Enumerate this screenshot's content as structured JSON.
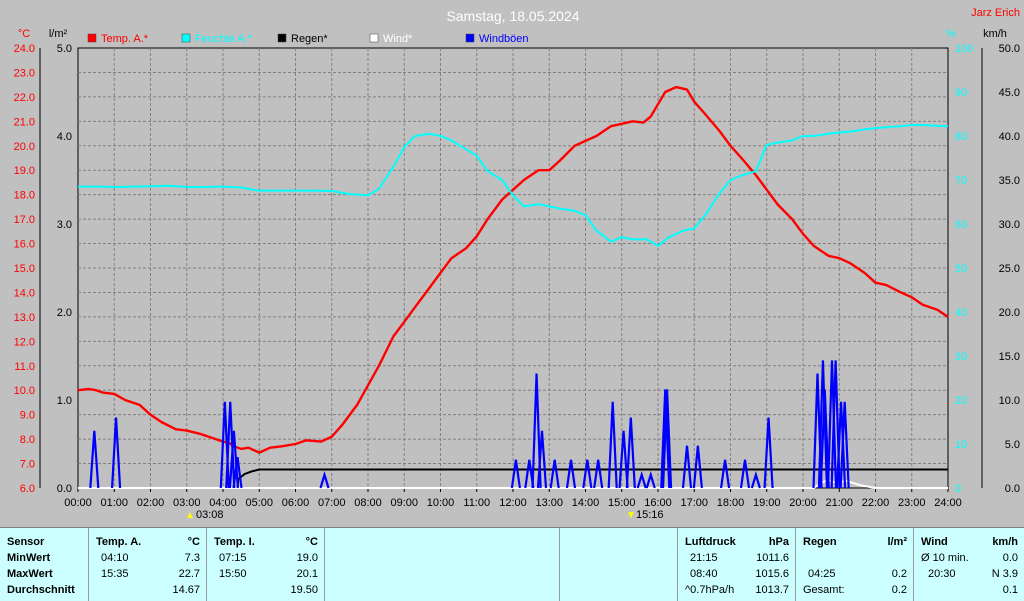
{
  "header": {
    "title": "Samstag, 18.05.2024",
    "station": "Jarz Erich"
  },
  "units": {
    "left1": "°C",
    "left2": "l/m²",
    "right1": "%",
    "right2": "km/h"
  },
  "colors": {
    "temp": "#ff0000",
    "humidity": "#00ffff",
    "rain": "#000000",
    "wind": "#ffffff",
    "gust": "#0000ff",
    "background": "#c0c0c0",
    "table_bg": "#ccffff"
  },
  "legend": [
    {
      "label": "Temp. A.*",
      "color": "#ff0000"
    },
    {
      "label": "Feuchte A.*",
      "color": "#00ffff"
    },
    {
      "label": "Regen*",
      "color": "#000000"
    },
    {
      "label": "Wind*",
      "color": "#ffffff"
    },
    {
      "label": "Windböen",
      "color": "#0000ff"
    }
  ],
  "markers": {
    "sunrise": "03:08",
    "sunset": "15:16"
  },
  "chart_data": {
    "type": "line",
    "x_ticks": [
      "00:00",
      "01:00",
      "02:00",
      "03:00",
      "04:00",
      "05:00",
      "06:00",
      "07:00",
      "08:00",
      "09:00",
      "10:00",
      "11:00",
      "12:00",
      "13:00",
      "14:00",
      "15:00",
      "16:00",
      "17:00",
      "18:00",
      "19:00",
      "20:00",
      "21:00",
      "22:00",
      "23:00",
      "24:00"
    ],
    "axes": {
      "temperature": {
        "unit": "°C",
        "range": [
          6.0,
          24.0
        ],
        "ticks": [
          "6.0",
          "7.0",
          "8.0",
          "9.0",
          "10.0",
          "11.0",
          "12.0",
          "13.0",
          "14.0",
          "15.0",
          "16.0",
          "17.0",
          "18.0",
          "19.0",
          "20.0",
          "21.0",
          "22.0",
          "23.0",
          "24.0"
        ]
      },
      "rain": {
        "unit": "l/m²",
        "range": [
          0.0,
          5.0
        ],
        "ticks": [
          "0.0",
          "1.0",
          "2.0",
          "3.0",
          "4.0",
          "5.0"
        ]
      },
      "humidity": {
        "unit": "%",
        "range": [
          0,
          100
        ],
        "ticks": [
          "0",
          "10",
          "20",
          "30",
          "40",
          "50",
          "60",
          "70",
          "80",
          "90",
          "100"
        ]
      },
      "wind": {
        "unit": "km/h",
        "range": [
          0.0,
          50.0
        ],
        "ticks": [
          "0.0",
          "5.0",
          "10.0",
          "15.0",
          "20.0",
          "25.0",
          "30.0",
          "35.0",
          "40.0",
          "45.0",
          "50.0"
        ]
      }
    },
    "grid": true,
    "series": [
      {
        "name": "Temp. A.*",
        "axis": "temperature",
        "points": [
          [
            0,
            10.0
          ],
          [
            0.3,
            10.05
          ],
          [
            0.5,
            10.0
          ],
          [
            0.7,
            9.9
          ],
          [
            1.0,
            9.85
          ],
          [
            1.3,
            9.6
          ],
          [
            1.7,
            9.4
          ],
          [
            2.0,
            9.0
          ],
          [
            2.3,
            8.7
          ],
          [
            2.7,
            8.4
          ],
          [
            3.0,
            8.35
          ],
          [
            3.4,
            8.2
          ],
          [
            3.7,
            8.05
          ],
          [
            4.0,
            7.9
          ],
          [
            4.17,
            7.85
          ],
          [
            4.3,
            7.7
          ],
          [
            4.5,
            7.6
          ],
          [
            4.7,
            7.65
          ],
          [
            5.0,
            7.45
          ],
          [
            5.3,
            7.65
          ],
          [
            5.6,
            7.7
          ],
          [
            6.0,
            7.8
          ],
          [
            6.3,
            7.95
          ],
          [
            6.7,
            7.9
          ],
          [
            7.0,
            8.1
          ],
          [
            7.3,
            8.6
          ],
          [
            7.7,
            9.4
          ],
          [
            8.0,
            10.2
          ],
          [
            8.3,
            11.0
          ],
          [
            8.7,
            12.2
          ],
          [
            9.0,
            12.8
          ],
          [
            9.3,
            13.4
          ],
          [
            9.7,
            14.2
          ],
          [
            10.0,
            14.8
          ],
          [
            10.3,
            15.4
          ],
          [
            10.7,
            15.8
          ],
          [
            11.0,
            16.3
          ],
          [
            11.3,
            17.0
          ],
          [
            11.7,
            17.8
          ],
          [
            12.0,
            18.2
          ],
          [
            12.3,
            18.6
          ],
          [
            12.7,
            19.0
          ],
          [
            13.0,
            19.0
          ],
          [
            13.3,
            19.4
          ],
          [
            13.7,
            20.0
          ],
          [
            14.0,
            20.2
          ],
          [
            14.3,
            20.4
          ],
          [
            14.7,
            20.8
          ],
          [
            15.0,
            20.9
          ],
          [
            15.3,
            21.0
          ],
          [
            15.6,
            20.95
          ],
          [
            15.8,
            21.2
          ],
          [
            16.0,
            21.7
          ],
          [
            16.2,
            22.2
          ],
          [
            16.5,
            22.4
          ],
          [
            16.8,
            22.3
          ],
          [
            17.0,
            21.8
          ],
          [
            17.3,
            21.3
          ],
          [
            17.7,
            20.6
          ],
          [
            18.0,
            20.0
          ],
          [
            18.3,
            19.5
          ],
          [
            18.7,
            18.8
          ],
          [
            19.0,
            18.2
          ],
          [
            19.3,
            17.6
          ],
          [
            19.7,
            17.0
          ],
          [
            20.0,
            16.4
          ],
          [
            20.3,
            15.9
          ],
          [
            20.7,
            15.5
          ],
          [
            21.0,
            15.4
          ],
          [
            21.3,
            15.2
          ],
          [
            21.7,
            14.8
          ],
          [
            22.0,
            14.4
          ],
          [
            22.3,
            14.3
          ],
          [
            22.7,
            14.0
          ],
          [
            23.0,
            13.8
          ],
          [
            23.3,
            13.5
          ],
          [
            23.7,
            13.3
          ],
          [
            24.0,
            13.0
          ]
        ]
      },
      {
        "name": "Feuchte A.*",
        "axis": "humidity",
        "points": [
          [
            0,
            68.5
          ],
          [
            0.5,
            68.5
          ],
          [
            1.0,
            68.4
          ],
          [
            1.5,
            68.5
          ],
          [
            2.0,
            68.6
          ],
          [
            2.5,
            68.7
          ],
          [
            3.0,
            68.4
          ],
          [
            3.5,
            68.4
          ],
          [
            4.0,
            68.5
          ],
          [
            4.5,
            68.3
          ],
          [
            5.0,
            67.6
          ],
          [
            5.5,
            67.6
          ],
          [
            6.0,
            67.6
          ],
          [
            6.5,
            67.6
          ],
          [
            7.0,
            67.5
          ],
          [
            7.5,
            66.8
          ],
          [
            8.0,
            66.5
          ],
          [
            8.3,
            68.0
          ],
          [
            8.7,
            73.0
          ],
          [
            9.0,
            77.5
          ],
          [
            9.3,
            80.0
          ],
          [
            9.7,
            80.5
          ],
          [
            10.0,
            80.0
          ],
          [
            10.3,
            79.0
          ],
          [
            10.7,
            77.0
          ],
          [
            11.0,
            75.5
          ],
          [
            11.3,
            72.0
          ],
          [
            11.7,
            70.0
          ],
          [
            12.0,
            66.5
          ],
          [
            12.3,
            64.0
          ],
          [
            12.7,
            64.5
          ],
          [
            13.0,
            64.0
          ],
          [
            13.3,
            63.5
          ],
          [
            13.7,
            63.0
          ],
          [
            14.0,
            62.0
          ],
          [
            14.3,
            58.5
          ],
          [
            14.7,
            56.0
          ],
          [
            15.0,
            57.0
          ],
          [
            15.3,
            56.5
          ],
          [
            15.7,
            56.5
          ],
          [
            16.0,
            55.0
          ],
          [
            16.3,
            57.0
          ],
          [
            16.7,
            58.5
          ],
          [
            17.0,
            59.0
          ],
          [
            17.3,
            62.0
          ],
          [
            17.7,
            67.0
          ],
          [
            18.0,
            70.0
          ],
          [
            18.3,
            71.0
          ],
          [
            18.7,
            72.0
          ],
          [
            19.0,
            78.0
          ],
          [
            19.3,
            78.5
          ],
          [
            19.7,
            79.0
          ],
          [
            20.0,
            80.0
          ],
          [
            20.3,
            80.0
          ],
          [
            20.7,
            80.5
          ],
          [
            21.0,
            80.8
          ],
          [
            21.3,
            81.0
          ],
          [
            21.7,
            81.5
          ],
          [
            22.0,
            81.8
          ],
          [
            22.3,
            82.0
          ],
          [
            22.7,
            82.2
          ],
          [
            23.0,
            82.5
          ],
          [
            23.3,
            82.5
          ],
          [
            23.7,
            82.3
          ],
          [
            24.0,
            82.2
          ]
        ]
      },
      {
        "name": "Regen*",
        "axis": "rain",
        "points": [
          [
            0,
            0
          ],
          [
            4.4,
            0
          ],
          [
            4.42,
            0.1
          ],
          [
            4.6,
            0.16
          ],
          [
            4.8,
            0.19
          ],
          [
            5.0,
            0.21
          ],
          [
            5.5,
            0.21
          ],
          [
            6.0,
            0.21
          ],
          [
            24.0,
            0.21
          ]
        ]
      },
      {
        "name": "Wind*",
        "axis": "wind",
        "points": [
          [
            0,
            0
          ],
          [
            20.3,
            0
          ],
          [
            20.5,
            0.6
          ],
          [
            20.7,
            0.9
          ],
          [
            20.9,
            0.6
          ],
          [
            21.2,
            0.8
          ],
          [
            21.6,
            0.3
          ],
          [
            22.0,
            0
          ],
          [
            24.0,
            0
          ]
        ]
      },
      {
        "name": "Windböen",
        "axis": "wind",
        "bars": true,
        "spikes": [
          [
            0.45,
            6.5
          ],
          [
            1.05,
            8.0
          ],
          [
            4.05,
            9.8
          ],
          [
            4.2,
            9.8
          ],
          [
            4.3,
            6.5
          ],
          [
            4.4,
            3.5
          ],
          [
            6.8,
            1.5
          ],
          [
            12.08,
            3.2
          ],
          [
            12.45,
            3.2
          ],
          [
            12.65,
            13.0
          ],
          [
            12.8,
            6.5
          ],
          [
            13.15,
            3.2
          ],
          [
            13.6,
            3.2
          ],
          [
            14.05,
            3.2
          ],
          [
            14.35,
            3.2
          ],
          [
            14.75,
            9.8
          ],
          [
            15.05,
            6.5
          ],
          [
            15.25,
            8.0
          ],
          [
            15.55,
            1.5
          ],
          [
            15.8,
            1.5
          ],
          [
            16.2,
            11.2
          ],
          [
            16.25,
            11.2
          ],
          [
            16.8,
            4.8
          ],
          [
            17.1,
            4.8
          ],
          [
            17.85,
            3.2
          ],
          [
            18.4,
            3.2
          ],
          [
            18.7,
            1.5
          ],
          [
            19.05,
            8.0
          ],
          [
            20.4,
            13.0
          ],
          [
            20.55,
            14.5
          ],
          [
            20.6,
            11.2
          ],
          [
            20.8,
            14.5
          ],
          [
            20.9,
            14.5
          ],
          [
            21.05,
            9.8
          ],
          [
            21.15,
            9.8
          ]
        ]
      }
    ]
  },
  "table": {
    "sensor": {
      "header": "Sensor",
      "rows": [
        "MinWert",
        "MaxWert",
        "Durchschnitt"
      ]
    },
    "temp_a": {
      "header": "Temp. A.",
      "unit": "°C",
      "rows": [
        {
          "time": "04:10",
          "value": "7.3"
        },
        {
          "time": "15:35",
          "value": "22.7"
        },
        {
          "time": "",
          "value": "14.67"
        }
      ]
    },
    "temp_i": {
      "header": "Temp. I.",
      "unit": "°C",
      "rows": [
        {
          "time": "07:15",
          "value": "19.0"
        },
        {
          "time": "15:50",
          "value": "20.1"
        },
        {
          "time": "",
          "value": "19.50"
        }
      ]
    },
    "pressure": {
      "header": "Luftdruck",
      "unit": "hPa",
      "rows": [
        {
          "time": "21:15",
          "value": "1011.6"
        },
        {
          "time": "08:40",
          "value": "1015.6"
        },
        {
          "time": "^0.7hPa/h",
          "value": "1013.7"
        }
      ]
    },
    "rain": {
      "header": "Regen",
      "unit": "l/m²",
      "rows": [
        {
          "time": "",
          "value": ""
        },
        {
          "time": "04:25",
          "value": "0.2"
        },
        {
          "time": "Gesamt:",
          "value": "0.2"
        }
      ]
    },
    "wind": {
      "header": "Wind",
      "unit": "km/h",
      "rows": [
        {
          "time": "Ø 10 min.",
          "value": "0.0"
        },
        {
          "time": "20:30",
          "value": "N 3.9"
        },
        {
          "time": "",
          "value": "0.1"
        }
      ]
    }
  }
}
